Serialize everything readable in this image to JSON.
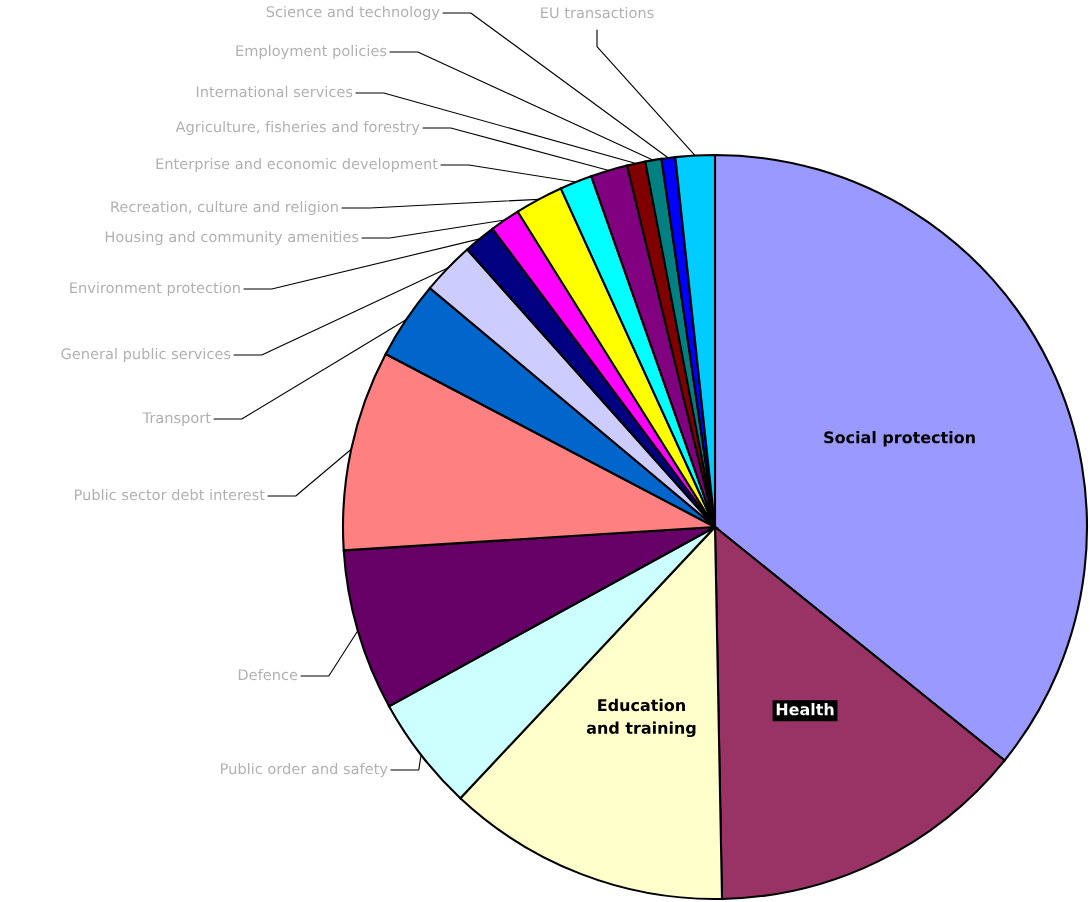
{
  "chart_data": {
    "type": "pie",
    "categories": [
      "Social protection",
      "Health",
      "Education\nand training",
      "Public order and safety",
      "Defence",
      "Public sector debt interest",
      "Transport",
      "General public services",
      "Environment protection",
      "Housing and community amenities",
      "Recreation, culture and religion",
      "Enterprise and economic development",
      "Agriculture, fisheries and forestry",
      "International services",
      "Employment policies",
      "Science and technology",
      "EU transactions"
    ],
    "values": [
      35.8,
      13.9,
      12.3,
      5.0,
      7.0,
      8.7,
      3.4,
      2.3,
      1.4,
      1.3,
      2.1,
      1.4,
      1.6,
      0.8,
      0.7,
      0.6,
      1.7
    ],
    "colors": [
      "#9999ff",
      "#993366",
      "#ffffcc",
      "#ccffff",
      "#660066",
      "#ff8080",
      "#0066cc",
      "#ccccff",
      "#000080",
      "#ff00ff",
      "#ffff00",
      "#00ffff",
      "#800080",
      "#800000",
      "#008080",
      "#0000ff",
      "#00ccff"
    ],
    "legend": false
  }
}
